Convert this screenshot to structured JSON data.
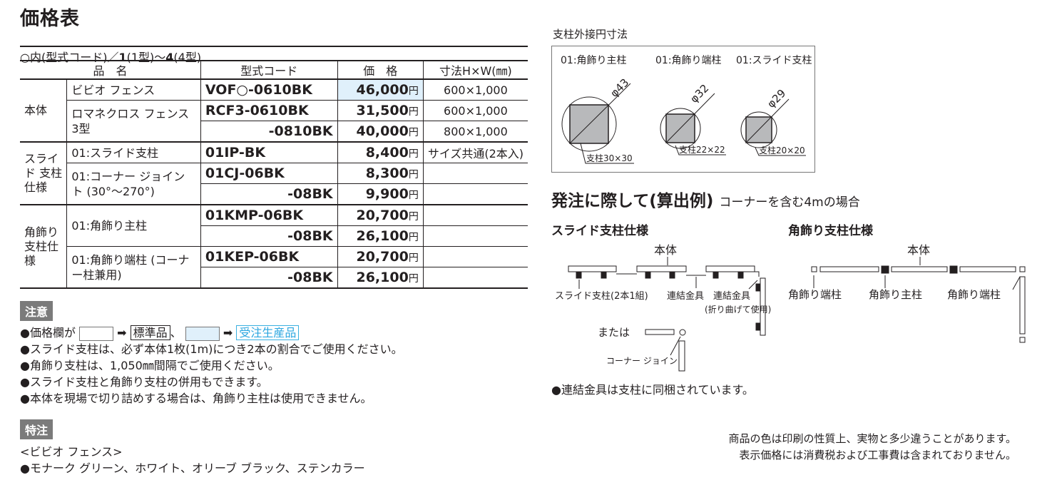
{
  "title": "価格表",
  "subtitle": {
    "pre": "○内(型式コード)／",
    "b1": "1",
    "m1": "(1型)〜",
    "b2": "4",
    "m2": "(4型)"
  },
  "table": {
    "headers": [
      "品　名",
      "型式コード",
      "価　格",
      "寸法H×W(㎜)"
    ],
    "yen": "円",
    "groups": [
      {
        "label": "本体",
        "rows": [
          {
            "name": "ビビオ フェンス",
            "code": "VOF○-0610BK",
            "price": "46,000",
            "size": "600×1,000",
            "highlight": true
          },
          {
            "name": "ロマネクロス フェンス 3型",
            "code": "RCF3-0610BK",
            "price": "31,500",
            "size": "600×1,000"
          },
          {
            "code": "-0810BK",
            "price": "40,000",
            "size": "800×1,000"
          }
        ]
      },
      {
        "label": "スライド 支柱仕様",
        "rows": [
          {
            "name": "01:スライド支柱",
            "code": "01IP-BK",
            "price": "8,400",
            "size": "サイズ共通(2本入)"
          },
          {
            "name": "01:コーナー ジョイント (30°〜270°)",
            "code": "01CJ-06BK",
            "price": "8,300",
            "size": ""
          },
          {
            "code": "-08BK",
            "price": "9,900",
            "size": ""
          }
        ]
      },
      {
        "label": "角飾り 支柱仕様",
        "rows": [
          {
            "name": "01:角飾り主柱",
            "code": "01KMP-06BK",
            "price": "20,700",
            "size": ""
          },
          {
            "code": "-08BK",
            "price": "26,100",
            "size": ""
          },
          {
            "name": "01:角飾り端柱 (コーナー柱兼用)",
            "code": "01KEP-06BK",
            "price": "20,700",
            "size": ""
          },
          {
            "code": "-08BK",
            "price": "26,100",
            "size": ""
          }
        ]
      }
    ]
  },
  "caution": {
    "tag": "注意",
    "legend": {
      "pre": "●価格欄が",
      "arrow": "➡",
      "std": "標準品",
      "sep": "、",
      "ord": "受注生産品"
    },
    "items": [
      "●スライド支柱は、必ず本体1枚(1m)につき2本の割合でご使用ください。",
      "●角飾り支柱は、1,050㎜間隔でご使用ください。",
      "●スライド支柱と角飾り支柱の併用もできます。",
      "●本体を現場で切り詰めする場合は、角飾り主柱は使用できません。"
    ]
  },
  "special": {
    "tag": "特注",
    "sub": "<ビビオ フェンス>",
    "items": [
      "●モナーク グリーン、ホワイト、オリーブ ブラック、ステンカラー"
    ]
  },
  "dims": {
    "label": "支柱外接円寸法",
    "items": [
      {
        "name": "01:角飾り主柱",
        "dia": "φ43",
        "post": "支柱30×30"
      },
      {
        "name": "01:角飾り端柱",
        "dia": "φ32",
        "post": "支柱22×22"
      },
      {
        "name": "01:スライド支柱",
        "dia": "φ29",
        "post": "支柱20×20"
      }
    ]
  },
  "order": {
    "title": "発注に際して(算出例)",
    "title_sub": "コーナーを含む4mの場合",
    "slide": {
      "title": "スライド支柱仕様",
      "body": "本体",
      "post": "スライド支柱(2本1組)",
      "joint": "連結金具",
      "joint2": "連結金具",
      "joint2b": "(折り曲げて使用)",
      "or": "または",
      "corner": "コーナー ジョイント"
    },
    "kazari": {
      "title": "角飾り支柱仕様",
      "body": "本体",
      "end1": "角飾り端柱",
      "main": "角飾り主柱",
      "end2": "角飾り端柱"
    },
    "note": "●連結金具は支柱に同梱されています。"
  },
  "footer": [
    "商品の色は印刷の性質上、実物と多少違うことがあります。",
    "表示価格には消費税および工事費は含まれておりません。"
  ],
  "colors": {
    "highlight": "#e0f0fb",
    "order_made": "#2aa6e0",
    "tag": "#7b7b7b"
  }
}
